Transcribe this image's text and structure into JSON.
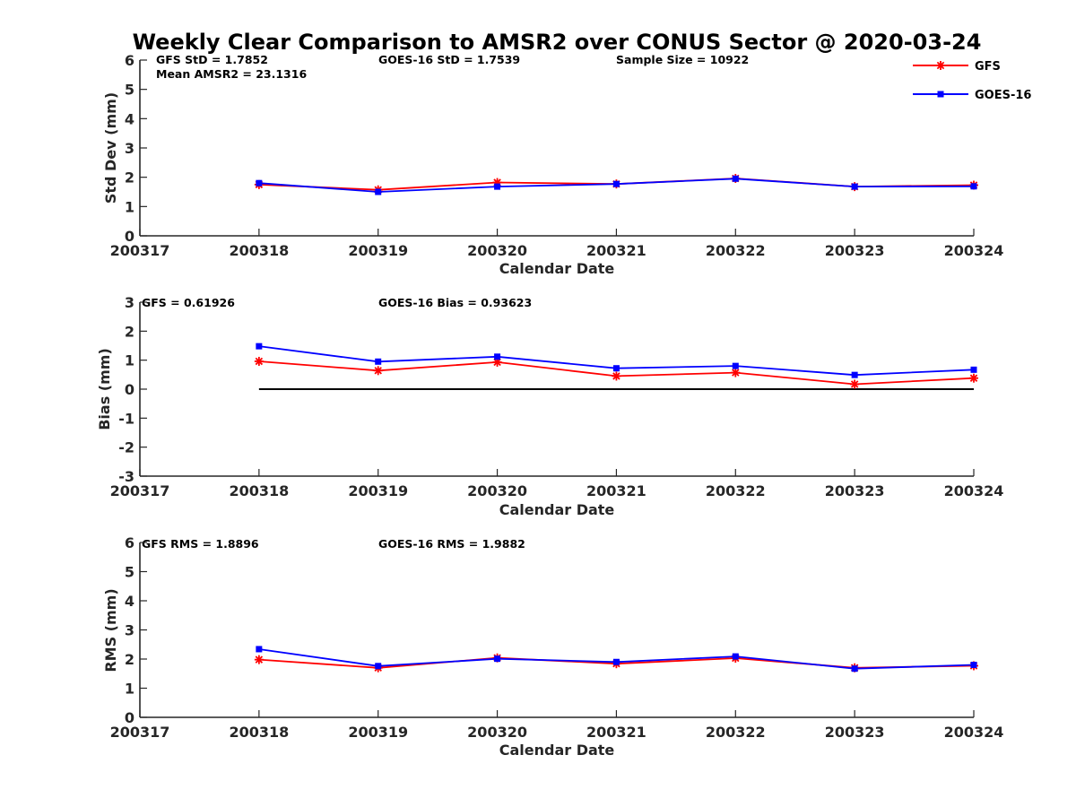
{
  "chart_data": {
    "title": "Weekly Clear Comparison to AMSR2 over CONUS Sector @ 2020-03-24",
    "legend": {
      "placement": "top-right",
      "entries": [
        {
          "name": "GFS",
          "color": "#ff0000",
          "marker": "asterisk"
        },
        {
          "name": "GOES-16",
          "color": "#0000ff",
          "marker": "square"
        }
      ]
    },
    "x_ticks": [
      "200317",
      "200318",
      "200319",
      "200320",
      "200321",
      "200322",
      "200323",
      "200324"
    ],
    "panels": [
      {
        "id": "std",
        "type": "line",
        "ylabel": "Std Dev (mm)",
        "xlabel": "Calendar Date",
        "ylim": [
          0,
          6
        ],
        "yticks": [
          0,
          1,
          2,
          3,
          4,
          5,
          6
        ],
        "zero_line": false,
        "annotations": [
          {
            "text": "GFS StD = 1.7852"
          },
          {
            "text": "Mean AMSR2 = 23.1316"
          },
          {
            "text": "GOES-16 StD = 1.7539"
          },
          {
            "text": "Sample Size = 10922"
          }
        ],
        "series": [
          {
            "name": "GFS",
            "color": "#ff0000",
            "marker": "asterisk",
            "values": [
              1.75,
              1.57,
              1.82,
              1.77,
              1.96,
              1.68,
              1.73
            ]
          },
          {
            "name": "GOES-16",
            "color": "#0000ff",
            "marker": "square",
            "values": [
              1.8,
              1.5,
              1.68,
              1.77,
              1.95,
              1.68,
              1.69
            ]
          }
        ]
      },
      {
        "id": "bias",
        "type": "line",
        "ylabel": "Bias (mm)",
        "xlabel": "Calendar Date",
        "ylim": [
          -3,
          3
        ],
        "yticks": [
          -3,
          -2,
          -1,
          0,
          1,
          2,
          3
        ],
        "zero_line": true,
        "annotations": [
          {
            "text": "GFS = 0.61926"
          },
          {
            "text": "GOES-16 Bias  = 0.93623"
          }
        ],
        "series": [
          {
            "name": "GFS",
            "color": "#ff0000",
            "marker": "asterisk",
            "values": [
              0.96,
              0.64,
              0.93,
              0.45,
              0.57,
              0.17,
              0.38
            ]
          },
          {
            "name": "GOES-16",
            "color": "#0000ff",
            "marker": "square",
            "values": [
              1.48,
              0.95,
              1.12,
              0.72,
              0.8,
              0.49,
              0.67
            ]
          }
        ]
      },
      {
        "id": "rms",
        "type": "line",
        "ylabel": "RMS (mm)",
        "xlabel": "Calendar Date",
        "ylim": [
          0,
          6
        ],
        "yticks": [
          0,
          1,
          2,
          3,
          4,
          5,
          6
        ],
        "zero_line": false,
        "annotations": [
          {
            "text": "GFS RMS = 1.8896"
          },
          {
            "text": "GOES-16 RMS = 1.9882"
          }
        ],
        "series": [
          {
            "name": "GFS",
            "color": "#ff0000",
            "marker": "asterisk",
            "values": [
              1.98,
              1.7,
              2.04,
              1.84,
              2.03,
              1.7,
              1.77
            ]
          },
          {
            "name": "GOES-16",
            "color": "#0000ff",
            "marker": "square",
            "values": [
              2.34,
              1.76,
              2.01,
              1.9,
              2.09,
              1.67,
              1.8
            ]
          }
        ]
      }
    ]
  }
}
